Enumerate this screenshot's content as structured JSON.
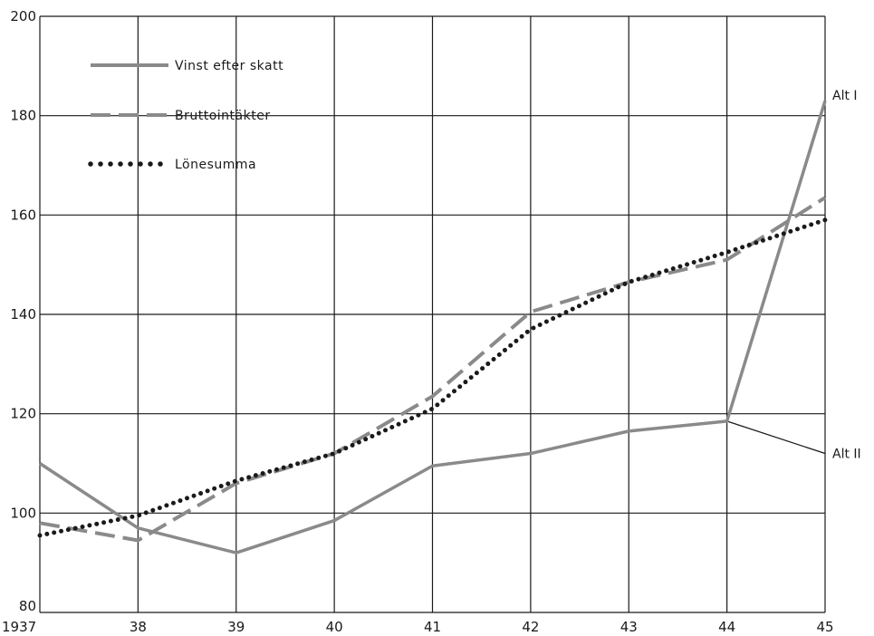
{
  "chart_data": {
    "type": "line",
    "x": [
      "1937",
      "38",
      "39",
      "40",
      "41",
      "42",
      "43",
      "44",
      "45"
    ],
    "ylim": [
      80,
      200
    ],
    "yticks": [
      80,
      100,
      120,
      140,
      160,
      180,
      200
    ],
    "grid": true,
    "legend_position": "top-left",
    "series": [
      {
        "name": "Vinst efter skatt",
        "style": "solid",
        "color": "#8a8a8a",
        "values": [
          110,
          97,
          92,
          98.5,
          109.5,
          112,
          116.5,
          118.5,
          183
        ]
      },
      {
        "name": "Bruttointäkter",
        "style": "dashed",
        "color": "#8a8a8a",
        "values": [
          98,
          94.5,
          106,
          112,
          123.5,
          140.5,
          146.5,
          151,
          163.5
        ]
      },
      {
        "name": "Lönesumma",
        "style": "dotted",
        "color": "#1a1a1a",
        "values": [
          95.5,
          99.5,
          106.5,
          112,
          121,
          137,
          146.5,
          152.5,
          159
        ]
      }
    ],
    "extra_lines": [
      {
        "label": "Alt II",
        "x": [
          "44",
          "45"
        ],
        "values": [
          118.5,
          112
        ]
      }
    ],
    "annotations": [
      {
        "text": "Alt I",
        "series": "Vinst efter skatt",
        "x": "45",
        "value": 183
      },
      {
        "text": "Alt II",
        "x": "45",
        "value": 112
      }
    ]
  }
}
